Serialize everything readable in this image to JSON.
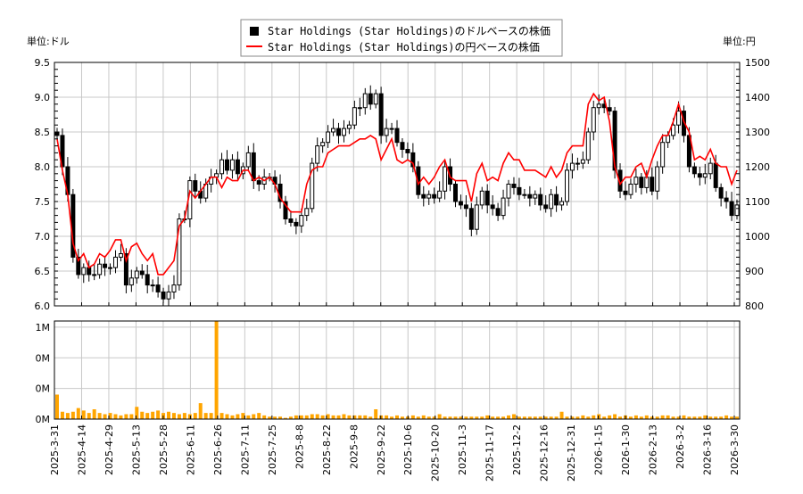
{
  "chart_data": [
    {
      "type": "candlestick+line",
      "left_unit_label": "単位:ドル",
      "right_unit_label": "単位:円",
      "legend": {
        "position": "top-center",
        "entries": [
          {
            "label": "Star Holdings (Star Holdings)のドルベースの株価",
            "color": "#000000",
            "marker": "square"
          },
          {
            "label": "Star Holdings (Star Holdings)の円ベースの株価",
            "color": "#ff0000",
            "marker": "line"
          }
        ]
      },
      "y_left": {
        "range": [
          6.0,
          9.5
        ],
        "ticks": [
          "6.0",
          "6.5",
          "7.0",
          "7.5",
          "8.0",
          "8.5",
          "9.0",
          "9.5"
        ]
      },
      "y_right": {
        "range": [
          800,
          1500
        ],
        "ticks": [
          "800",
          "900",
          "1000",
          "1100",
          "1200",
          "1300",
          "1400",
          "1500"
        ]
      },
      "grid": true,
      "usd_close": [
        8.45,
        8.0,
        7.6,
        6.7,
        6.45,
        6.55,
        6.45,
        6.45,
        6.6,
        6.55,
        6.55,
        6.7,
        6.75,
        6.3,
        6.4,
        6.5,
        6.45,
        6.3,
        6.3,
        6.2,
        6.1,
        6.2,
        6.3,
        7.25,
        7.25,
        7.8,
        7.65,
        7.55,
        7.75,
        7.85,
        7.9,
        8.1,
        7.95,
        8.1,
        7.9,
        8.0,
        8.2,
        7.8,
        7.75,
        7.85,
        7.85,
        7.75,
        7.5,
        7.25,
        7.2,
        7.15,
        7.3,
        7.4,
        8.05,
        8.3,
        8.35,
        8.5,
        8.55,
        8.45,
        8.55,
        8.6,
        8.85,
        8.85,
        9.05,
        8.9,
        9.05,
        8.45,
        8.55,
        8.55,
        8.35,
        8.25,
        8.2,
        8.0,
        7.6,
        7.55,
        7.6,
        7.55,
        7.65,
        8.0,
        7.75,
        7.5,
        7.45,
        7.4,
        7.1,
        7.45,
        7.65,
        7.45,
        7.4,
        7.3,
        7.55,
        7.75,
        7.7,
        7.6,
        7.6,
        7.55,
        7.6,
        7.45,
        7.4,
        7.6,
        7.45,
        7.5,
        7.95,
        8.05,
        8.05,
        8.1,
        8.5,
        8.85,
        8.9,
        8.85,
        8.8,
        7.95,
        7.65,
        7.6,
        7.75,
        7.85,
        7.7,
        7.85,
        7.65,
        8.0,
        8.35,
        8.45,
        8.6,
        8.8,
        8.45,
        8.0,
        7.9,
        7.85,
        7.9,
        8.05,
        7.7,
        7.55,
        7.5,
        7.3,
        7.45
      ],
      "jpy_price": [
        1280,
        1190,
        1120,
        980,
        930,
        950,
        910,
        920,
        950,
        940,
        960,
        990,
        990,
        930,
        970,
        980,
        950,
        930,
        950,
        890,
        890,
        910,
        930,
        1030,
        1050,
        1130,
        1110,
        1130,
        1150,
        1170,
        1170,
        1140,
        1170,
        1160,
        1160,
        1190,
        1190,
        1160,
        1170,
        1160,
        1170,
        1150,
        1110,
        1090,
        1070,
        1070,
        1070,
        1150,
        1190,
        1200,
        1200,
        1240,
        1250,
        1260,
        1260,
        1260,
        1270,
        1280,
        1280,
        1290,
        1280,
        1220,
        1250,
        1280,
        1220,
        1210,
        1220,
        1210,
        1150,
        1170,
        1150,
        1170,
        1200,
        1220,
        1170,
        1160,
        1160,
        1160,
        1100,
        1180,
        1210,
        1160,
        1170,
        1160,
        1210,
        1240,
        1220,
        1220,
        1190,
        1190,
        1190,
        1180,
        1170,
        1200,
        1170,
        1190,
        1240,
        1260,
        1260,
        1260,
        1380,
        1410,
        1390,
        1400,
        1330,
        1200,
        1150,
        1170,
        1170,
        1200,
        1210,
        1170,
        1220,
        1260,
        1290,
        1290,
        1330,
        1380,
        1330,
        1300,
        1220,
        1230,
        1220,
        1250,
        1210,
        1200,
        1200,
        1150,
        1190
      ],
      "volume_axis": {
        "ticks": [
          "0M",
          "0M",
          "0M",
          "1M"
        ]
      },
      "volume_color": "#ffa500",
      "volume_m": [
        0.2,
        0.06,
        0.05,
        0.06,
        0.09,
        0.07,
        0.05,
        0.08,
        0.05,
        0.04,
        0.05,
        0.04,
        0.03,
        0.04,
        0.04,
        0.1,
        0.06,
        0.05,
        0.06,
        0.07,
        0.05,
        0.06,
        0.05,
        0.04,
        0.05,
        0.04,
        0.05,
        0.13,
        0.05,
        0.05,
        0.9,
        0.05,
        0.04,
        0.03,
        0.04,
        0.05,
        0.03,
        0.04,
        0.05,
        0.03,
        0.02,
        0.02,
        0.02,
        0.01,
        0.02,
        0.03,
        0.03,
        0.03,
        0.04,
        0.04,
        0.03,
        0.04,
        0.03,
        0.03,
        0.04,
        0.03,
        0.03,
        0.03,
        0.03,
        0.02,
        0.08,
        0.03,
        0.03,
        0.02,
        0.03,
        0.02,
        0.02,
        0.03,
        0.02,
        0.03,
        0.02,
        0.02,
        0.04,
        0.02,
        0.02,
        0.02,
        0.02,
        0.02,
        0.02,
        0.02,
        0.02,
        0.03,
        0.02,
        0.02,
        0.02,
        0.03,
        0.04,
        0.02,
        0.02,
        0.02,
        0.02,
        0.02,
        0.02,
        0.02,
        0.02,
        0.06,
        0.02,
        0.02,
        0.02,
        0.03,
        0.02,
        0.03,
        0.04,
        0.02,
        0.03,
        0.04,
        0.02,
        0.03,
        0.02,
        0.03,
        0.02,
        0.03,
        0.02,
        0.02,
        0.03,
        0.03,
        0.02,
        0.02,
        0.03,
        0.02,
        0.02,
        0.02,
        0.03,
        0.02,
        0.02,
        0.02,
        0.03,
        0.02,
        0.02
      ],
      "x_tick_labels": [
        "2025-3-31",
        "2025-4-14",
        "2025-4-29",
        "2025-5-13",
        "2025-5-28",
        "2025-6-11",
        "2025-6-26",
        "2025-7-11",
        "2025-7-25",
        "2025-8-8",
        "2025-8-22",
        "2025-9-8",
        "2025-9-22",
        "2025-10-6",
        "2025-10-20",
        "2025-11-3",
        "2025-11-17",
        "2025-12-2",
        "2025-12-16",
        "2025-12-31",
        "2026-1-15",
        "2026-1-30",
        "2026-2-13",
        "2026-3-2",
        "2026-3-16",
        "2026-3-30"
      ]
    }
  ]
}
